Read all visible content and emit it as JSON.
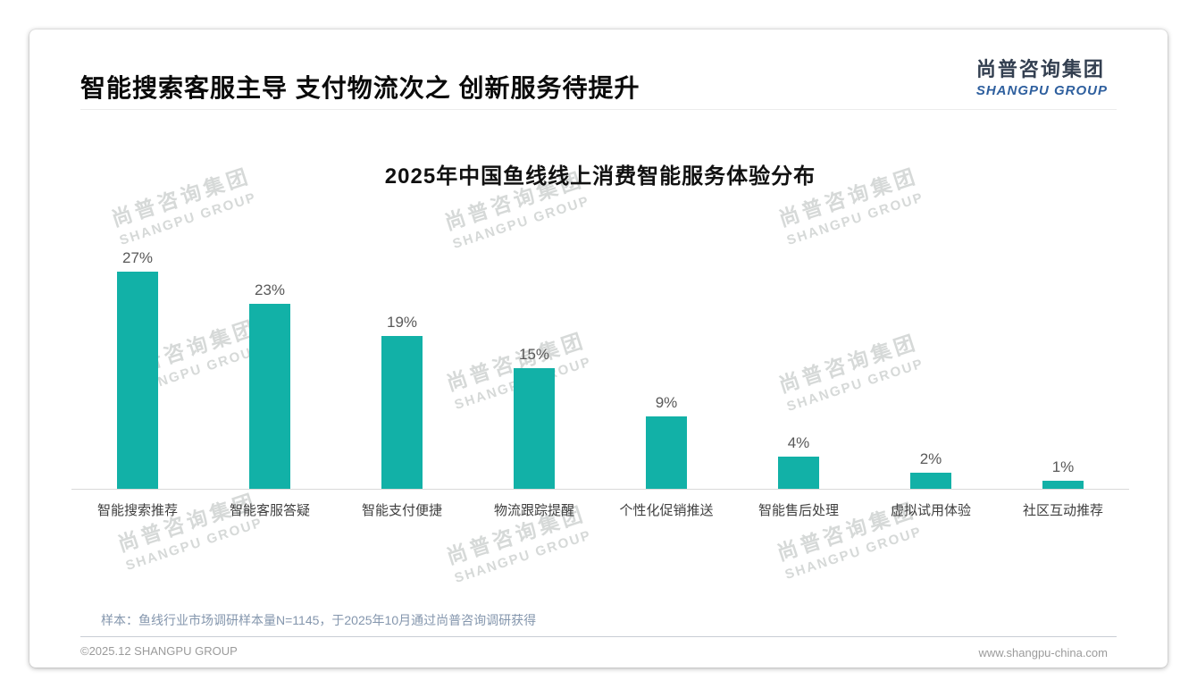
{
  "page": {
    "header": {
      "title": "智能搜索客服主导 支付物流次之 创新服务待提升"
    },
    "logo": {
      "cn": "尚普咨询集团",
      "en": "SHANGPU GROUP"
    },
    "watermark": {
      "line1": "尚普咨询集团",
      "line2": "SHANGPU GROUP"
    },
    "note": "样本：鱼线行业市场调研样本量N=1145，于2025年10月通过尚普咨询调研获得",
    "footer": {
      "left": "©2025.12 SHANGPU GROUP",
      "right": "www.shangpu-china.com"
    }
  },
  "chart_data": {
    "type": "bar",
    "title": "2025年中国鱼线线上消费智能服务体验分布",
    "categories": [
      "智能搜索推荐",
      "智能客服答疑",
      "智能支付便捷",
      "物流跟踪提醒",
      "个性化促销推送",
      "智能售后处理",
      "虚拟试用体验",
      "社区互动推荐"
    ],
    "values": [
      27,
      23,
      19,
      15,
      9,
      4,
      2,
      1
    ],
    "value_labels": [
      "27%",
      "23%",
      "19%",
      "15%",
      "9%",
      "4%",
      "2%",
      "1%"
    ],
    "unit": "%",
    "bar_color": "#12b1a7",
    "ylim": [
      0,
      30
    ],
    "grid": false,
    "legend": false,
    "value_axis_visible": false,
    "baseline_color": "#d9d9d9"
  }
}
